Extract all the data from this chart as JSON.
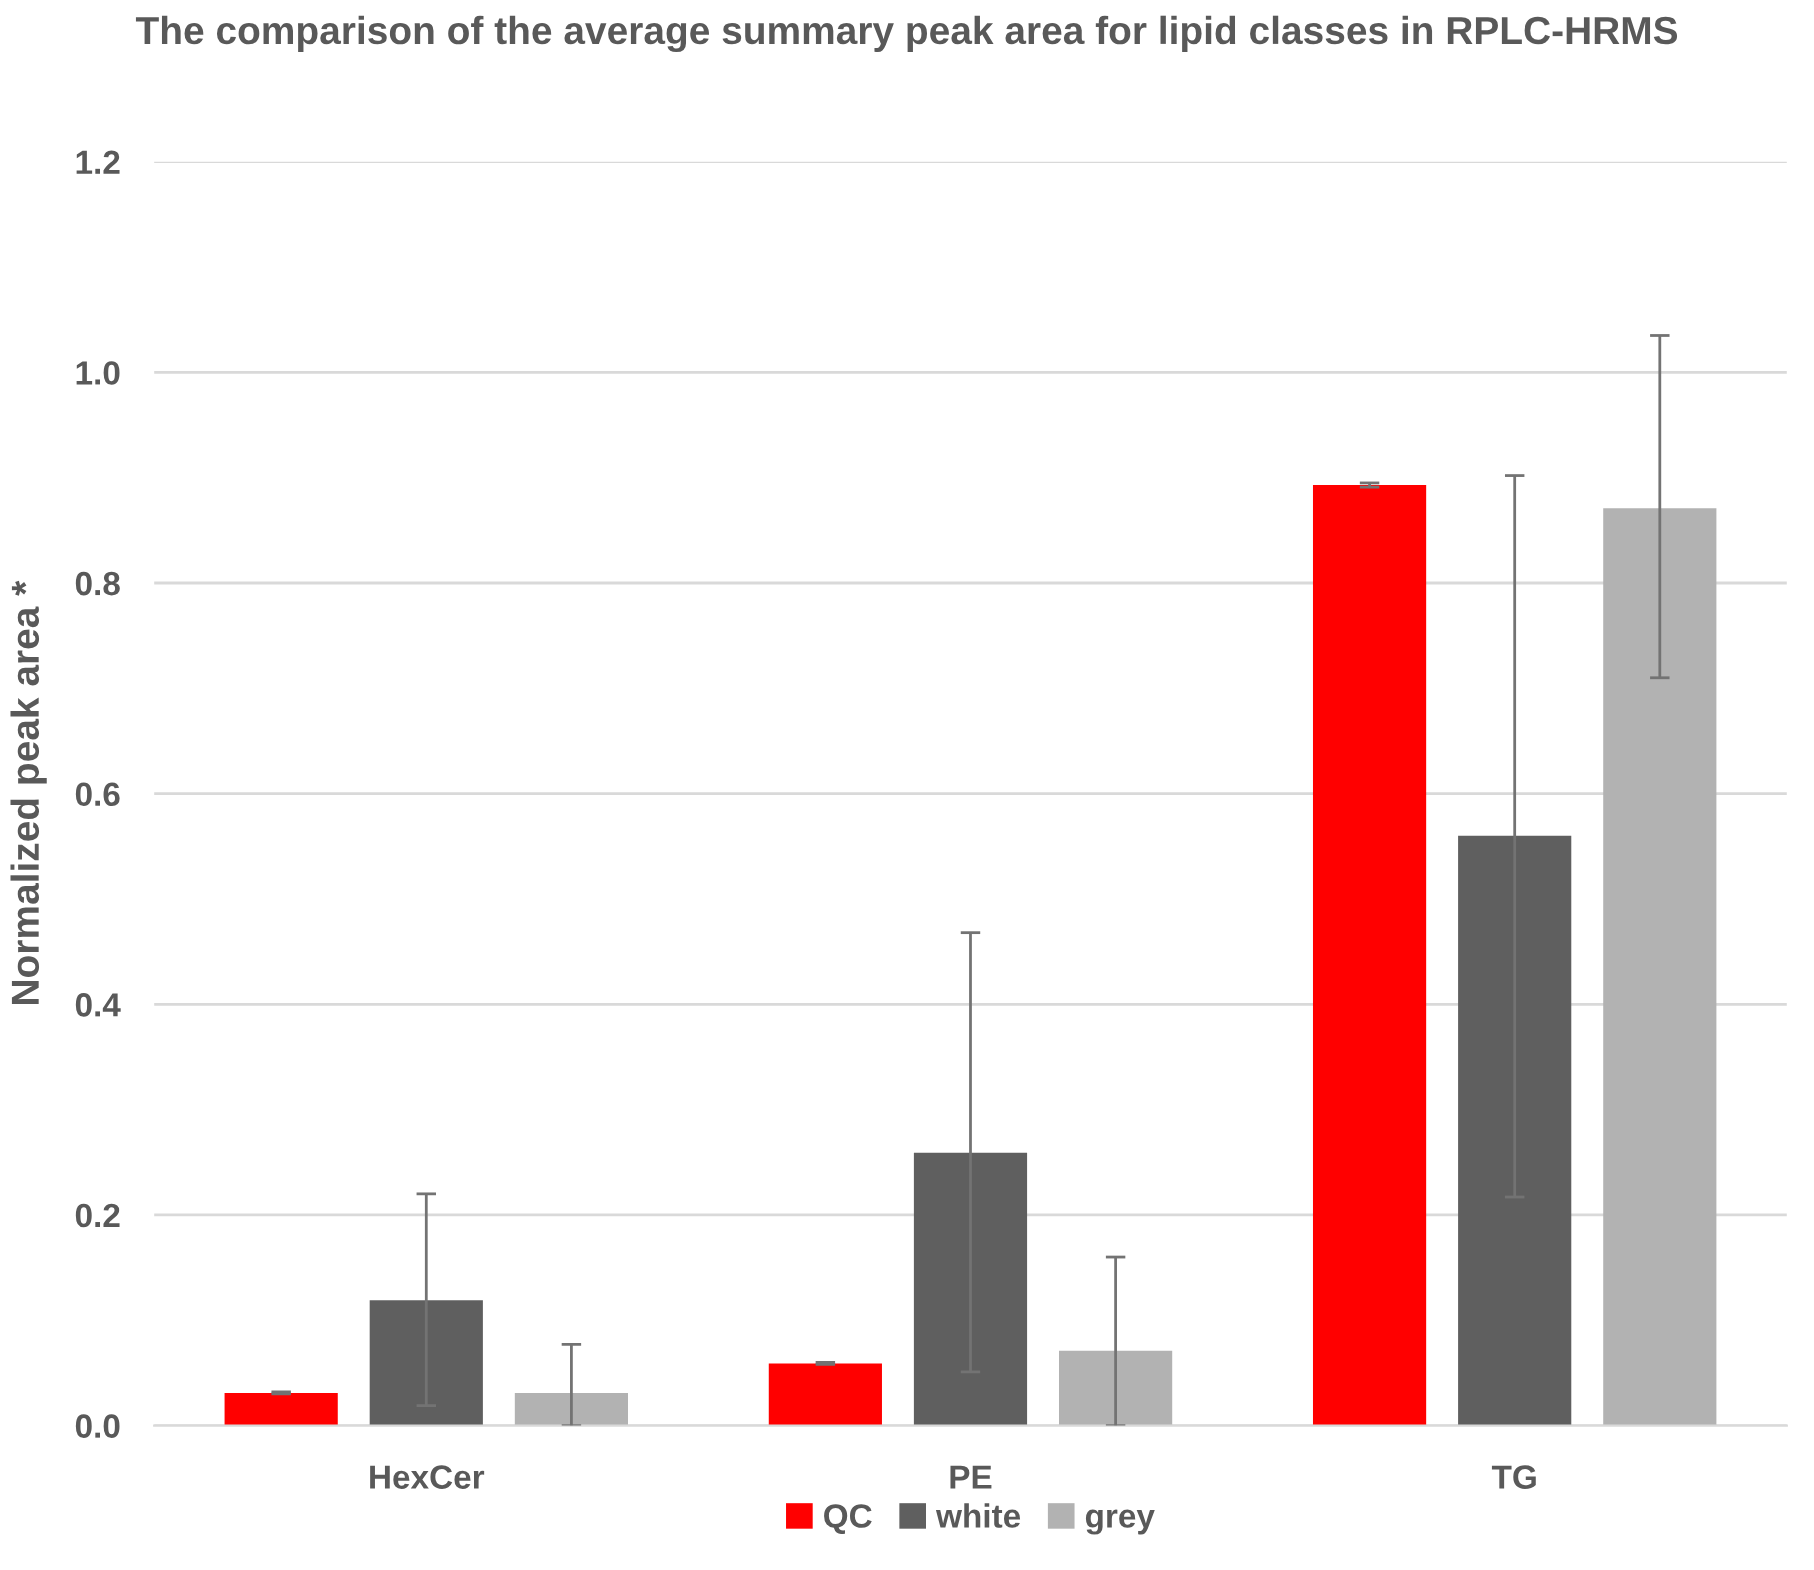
{
  "chart_data": {
    "type": "bar",
    "title": "The comparison of the average summary peak area for lipid classes in RPLC-HRMS",
    "ylabel": "Normalized peak area *",
    "categories": [
      "HexCer",
      "PE",
      "TG"
    ],
    "series": [
      {
        "name": "QC",
        "color": "#ff0000",
        "values": [
          0.031,
          0.059,
          0.893
        ],
        "errors": [
          [
            0.03,
            0.032
          ],
          [
            0.058,
            0.06
          ],
          [
            0.891,
            0.895
          ]
        ]
      },
      {
        "name": "white",
        "color": "#5f5f5f",
        "values": [
          0.119,
          0.259,
          0.56
        ],
        "errors": [
          [
            0.019,
            0.22
          ],
          [
            0.051,
            0.468
          ],
          [
            0.217,
            0.902
          ]
        ]
      },
      {
        "name": "grey",
        "color": "#b2b2b2",
        "values": [
          0.031,
          0.071,
          0.871
        ],
        "errors": [
          [
            0.0,
            0.077
          ],
          [
            0.0,
            0.16
          ],
          [
            0.71,
            1.035
          ]
        ]
      }
    ],
    "ylim": [
      0,
      1.2
    ],
    "yticks": [
      {
        "value": 0,
        "label": "0.0"
      },
      0.2,
      0.4,
      0.6,
      0.8,
      {
        "value": 1,
        "label": "1.0"
      },
      1.2
    ],
    "grid": "y",
    "legend": "bottom"
  }
}
